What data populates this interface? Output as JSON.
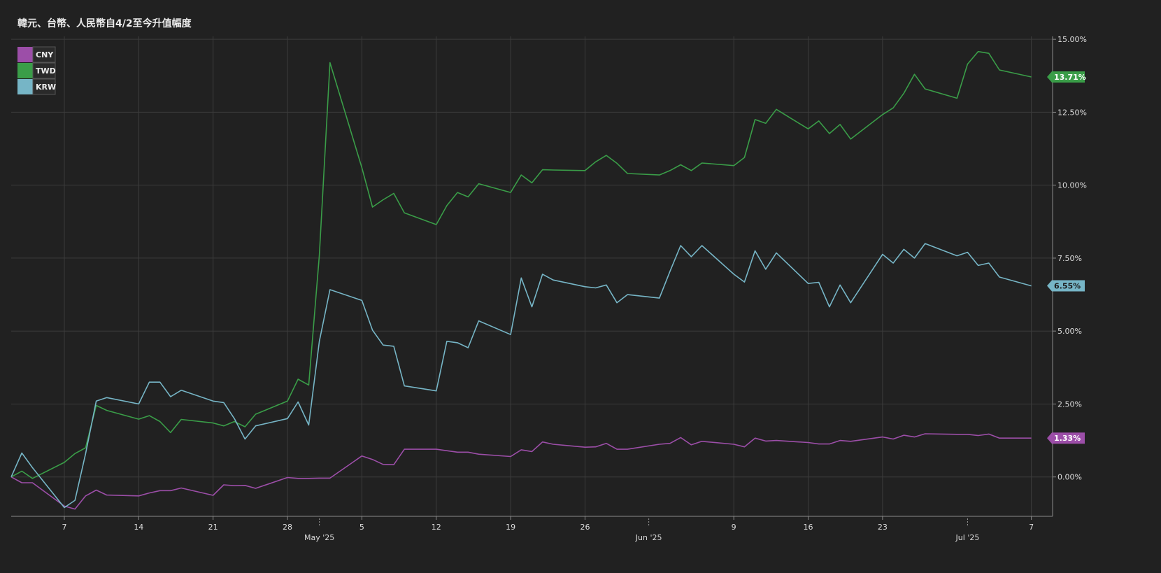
{
  "chart_data": {
    "type": "line",
    "title": "韓元、台幣、人民幣自4/2至今升值幅度",
    "ylim": [
      -1.35,
      15.1
    ],
    "yticks": [
      {
        "value": 15,
        "label": "15.00%"
      },
      {
        "value": 12.5,
        "label": "12.50%"
      },
      {
        "value": 10,
        "label": "10.00%"
      },
      {
        "value": 7.5,
        "label": "7.50%"
      },
      {
        "value": 5,
        "label": "5.00%"
      },
      {
        "value": 2.5,
        "label": "2.50%"
      },
      {
        "value": 0,
        "label": "0.00%"
      }
    ],
    "xrange": [
      "2025-04-02",
      "2025-07-09"
    ],
    "xticks": [
      {
        "date": "2025-04-07",
        "label": "7"
      },
      {
        "date": "2025-04-14",
        "label": "14"
      },
      {
        "date": "2025-04-21",
        "label": "21"
      },
      {
        "date": "2025-04-28",
        "label": "28"
      },
      {
        "date": "2025-05-05",
        "label": "5"
      },
      {
        "date": "2025-05-12",
        "label": "12"
      },
      {
        "date": "2025-05-19",
        "label": "19"
      },
      {
        "date": "2025-05-26",
        "label": "26"
      },
      {
        "date": "2025-06-09",
        "label": "9"
      },
      {
        "date": "2025-06-16",
        "label": "16"
      },
      {
        "date": "2025-06-23",
        "label": "23"
      },
      {
        "date": "2025-07-07",
        "label": "7"
      }
    ],
    "month_ticks": [
      {
        "date": "2025-05-01",
        "label": "May '25"
      },
      {
        "date": "2025-06-01",
        "label": "Jun '25"
      },
      {
        "date": "2025-07-01",
        "label": "Jul '25"
      }
    ],
    "legend_position": "top-left",
    "grid": true,
    "series": [
      {
        "name": "CNY",
        "color": "#9c4ea8",
        "last_label": "1.33%",
        "points": [
          [
            "2025-04-02",
            0.0
          ],
          [
            "2025-04-03",
            -0.2
          ],
          [
            "2025-04-04",
            -0.2
          ],
          [
            "2025-04-07",
            -1.0
          ],
          [
            "2025-04-08",
            -1.1
          ],
          [
            "2025-04-09",
            -0.65
          ],
          [
            "2025-04-10",
            -0.45
          ],
          [
            "2025-04-11",
            -0.62
          ],
          [
            "2025-04-14",
            -0.65
          ],
          [
            "2025-04-15",
            -0.55
          ],
          [
            "2025-04-16",
            -0.47
          ],
          [
            "2025-04-17",
            -0.47
          ],
          [
            "2025-04-18",
            -0.38
          ],
          [
            "2025-04-21",
            -0.63
          ],
          [
            "2025-04-22",
            -0.27
          ],
          [
            "2025-04-23",
            -0.3
          ],
          [
            "2025-04-24",
            -0.29
          ],
          [
            "2025-04-25",
            -0.39
          ],
          [
            "2025-04-28",
            -0.02
          ],
          [
            "2025-04-29",
            -0.05
          ],
          [
            "2025-04-30",
            -0.05
          ],
          [
            "2025-05-01",
            -0.04
          ],
          [
            "2025-05-02",
            -0.04
          ],
          [
            "2025-05-05",
            0.72
          ],
          [
            "2025-05-06",
            0.6
          ],
          [
            "2025-05-07",
            0.43
          ],
          [
            "2025-05-08",
            0.42
          ],
          [
            "2025-05-09",
            0.95
          ],
          [
            "2025-05-12",
            0.95
          ],
          [
            "2025-05-13",
            0.9
          ],
          [
            "2025-05-14",
            0.85
          ],
          [
            "2025-05-15",
            0.85
          ],
          [
            "2025-05-16",
            0.78
          ],
          [
            "2025-05-19",
            0.7
          ],
          [
            "2025-05-20",
            0.93
          ],
          [
            "2025-05-21",
            0.87
          ],
          [
            "2025-05-22",
            1.2
          ],
          [
            "2025-05-23",
            1.12
          ],
          [
            "2025-05-26",
            1.02
          ],
          [
            "2025-05-27",
            1.03
          ],
          [
            "2025-05-28",
            1.15
          ],
          [
            "2025-05-29",
            0.95
          ],
          [
            "2025-05-30",
            0.95
          ],
          [
            "2025-06-02",
            1.12
          ],
          [
            "2025-06-03",
            1.15
          ],
          [
            "2025-06-04",
            1.35
          ],
          [
            "2025-06-05",
            1.1
          ],
          [
            "2025-06-06",
            1.22
          ],
          [
            "2025-06-09",
            1.12
          ],
          [
            "2025-06-10",
            1.03
          ],
          [
            "2025-06-11",
            1.33
          ],
          [
            "2025-06-12",
            1.23
          ],
          [
            "2025-06-13",
            1.25
          ],
          [
            "2025-06-16",
            1.18
          ],
          [
            "2025-06-17",
            1.13
          ],
          [
            "2025-06-18",
            1.13
          ],
          [
            "2025-06-19",
            1.25
          ],
          [
            "2025-06-20",
            1.22
          ],
          [
            "2025-06-23",
            1.37
          ],
          [
            "2025-06-24",
            1.3
          ],
          [
            "2025-06-25",
            1.43
          ],
          [
            "2025-06-26",
            1.37
          ],
          [
            "2025-06-27",
            1.48
          ],
          [
            "2025-06-30",
            1.46
          ],
          [
            "2025-07-01",
            1.46
          ],
          [
            "2025-07-02",
            1.42
          ],
          [
            "2025-07-03",
            1.47
          ],
          [
            "2025-07-04",
            1.33
          ],
          [
            "2025-07-07",
            1.33
          ]
        ]
      },
      {
        "name": "TWD",
        "color": "#3a9d48",
        "last_label": "13.71%",
        "points": [
          [
            "2025-04-02",
            0.0
          ],
          [
            "2025-04-03",
            0.2
          ],
          [
            "2025-04-04",
            -0.05
          ],
          [
            "2025-04-07",
            0.5
          ],
          [
            "2025-04-08",
            0.8
          ],
          [
            "2025-04-09",
            1.0
          ],
          [
            "2025-04-10",
            2.45
          ],
          [
            "2025-04-11",
            2.28
          ],
          [
            "2025-04-14",
            1.98
          ],
          [
            "2025-04-15",
            2.1
          ],
          [
            "2025-04-16",
            1.9
          ],
          [
            "2025-04-17",
            1.52
          ],
          [
            "2025-04-18",
            1.97
          ],
          [
            "2025-04-21",
            1.85
          ],
          [
            "2025-04-22",
            1.75
          ],
          [
            "2025-04-23",
            1.9
          ],
          [
            "2025-04-24",
            1.72
          ],
          [
            "2025-04-25",
            2.15
          ],
          [
            "2025-04-28",
            2.6
          ],
          [
            "2025-04-29",
            3.35
          ],
          [
            "2025-04-30",
            3.15
          ],
          [
            "2025-05-01",
            7.6
          ],
          [
            "2025-05-02",
            14.2
          ],
          [
            "2025-05-05",
            10.6
          ],
          [
            "2025-05-06",
            9.25
          ],
          [
            "2025-05-07",
            9.5
          ],
          [
            "2025-05-08",
            9.72
          ],
          [
            "2025-05-09",
            9.05
          ],
          [
            "2025-05-12",
            8.65
          ],
          [
            "2025-05-13",
            9.3
          ],
          [
            "2025-05-14",
            9.75
          ],
          [
            "2025-05-15",
            9.6
          ],
          [
            "2025-05-16",
            10.05
          ],
          [
            "2025-05-19",
            9.75
          ],
          [
            "2025-05-20",
            10.35
          ],
          [
            "2025-05-21",
            10.08
          ],
          [
            "2025-05-22",
            10.53
          ],
          [
            "2025-05-23",
            10.52
          ],
          [
            "2025-05-26",
            10.5
          ],
          [
            "2025-05-27",
            10.8
          ],
          [
            "2025-05-28",
            11.02
          ],
          [
            "2025-05-29",
            10.75
          ],
          [
            "2025-05-30",
            10.4
          ],
          [
            "2025-06-02",
            10.35
          ],
          [
            "2025-06-03",
            10.5
          ],
          [
            "2025-06-04",
            10.7
          ],
          [
            "2025-06-05",
            10.5
          ],
          [
            "2025-06-06",
            10.76
          ],
          [
            "2025-06-09",
            10.67
          ],
          [
            "2025-06-10",
            10.95
          ],
          [
            "2025-06-11",
            12.25
          ],
          [
            "2025-06-12",
            12.12
          ],
          [
            "2025-06-13",
            12.6
          ],
          [
            "2025-06-16",
            11.93
          ],
          [
            "2025-06-17",
            12.2
          ],
          [
            "2025-06-18",
            11.77
          ],
          [
            "2025-06-19",
            12.08
          ],
          [
            "2025-06-20",
            11.58
          ],
          [
            "2025-06-23",
            12.42
          ],
          [
            "2025-06-24",
            12.65
          ],
          [
            "2025-06-25",
            13.15
          ],
          [
            "2025-06-26",
            13.8
          ],
          [
            "2025-06-27",
            13.3
          ],
          [
            "2025-06-30",
            12.98
          ],
          [
            "2025-07-01",
            14.15
          ],
          [
            "2025-07-02",
            14.58
          ],
          [
            "2025-07-03",
            14.52
          ],
          [
            "2025-07-04",
            13.95
          ],
          [
            "2025-07-07",
            13.71
          ]
        ]
      },
      {
        "name": "KRW",
        "color": "#76b5c6",
        "last_label": "6.55%",
        "points": [
          [
            "2025-04-02",
            0.0
          ],
          [
            "2025-04-03",
            0.82
          ],
          [
            "2025-04-04",
            0.32
          ],
          [
            "2025-04-07",
            -1.05
          ],
          [
            "2025-04-08",
            -0.8
          ],
          [
            "2025-04-09",
            0.8
          ],
          [
            "2025-04-10",
            2.6
          ],
          [
            "2025-04-11",
            2.72
          ],
          [
            "2025-04-14",
            2.5
          ],
          [
            "2025-04-15",
            3.25
          ],
          [
            "2025-04-16",
            3.25
          ],
          [
            "2025-04-17",
            2.75
          ],
          [
            "2025-04-18",
            2.97
          ],
          [
            "2025-04-21",
            2.6
          ],
          [
            "2025-04-22",
            2.55
          ],
          [
            "2025-04-23",
            2.0
          ],
          [
            "2025-04-24",
            1.3
          ],
          [
            "2025-04-25",
            1.75
          ],
          [
            "2025-04-28",
            2.0
          ],
          [
            "2025-04-29",
            2.57
          ],
          [
            "2025-04-30",
            1.78
          ],
          [
            "2025-05-01",
            4.65
          ],
          [
            "2025-05-02",
            6.42
          ],
          [
            "2025-05-05",
            6.05
          ],
          [
            "2025-05-06",
            5.03
          ],
          [
            "2025-05-07",
            4.52
          ],
          [
            "2025-05-08",
            4.48
          ],
          [
            "2025-05-09",
            3.12
          ],
          [
            "2025-05-12",
            2.95
          ],
          [
            "2025-05-13",
            4.65
          ],
          [
            "2025-05-14",
            4.6
          ],
          [
            "2025-05-15",
            4.43
          ],
          [
            "2025-05-16",
            5.35
          ],
          [
            "2025-05-19",
            4.88
          ],
          [
            "2025-05-20",
            6.82
          ],
          [
            "2025-05-21",
            5.83
          ],
          [
            "2025-05-22",
            6.95
          ],
          [
            "2025-05-23",
            6.75
          ],
          [
            "2025-05-26",
            6.52
          ],
          [
            "2025-05-27",
            6.48
          ],
          [
            "2025-05-28",
            6.58
          ],
          [
            "2025-05-29",
            5.97
          ],
          [
            "2025-05-30",
            6.25
          ],
          [
            "2025-06-02",
            6.13
          ],
          [
            "2025-06-03",
            7.05
          ],
          [
            "2025-06-04",
            7.93
          ],
          [
            "2025-06-05",
            7.55
          ],
          [
            "2025-06-06",
            7.93
          ],
          [
            "2025-06-09",
            6.95
          ],
          [
            "2025-06-10",
            6.68
          ],
          [
            "2025-06-11",
            7.75
          ],
          [
            "2025-06-12",
            7.12
          ],
          [
            "2025-06-13",
            7.68
          ],
          [
            "2025-06-16",
            6.63
          ],
          [
            "2025-06-17",
            6.67
          ],
          [
            "2025-06-18",
            5.83
          ],
          [
            "2025-06-19",
            6.58
          ],
          [
            "2025-06-20",
            5.97
          ],
          [
            "2025-06-23",
            7.63
          ],
          [
            "2025-06-24",
            7.33
          ],
          [
            "2025-06-25",
            7.8
          ],
          [
            "2025-06-26",
            7.5
          ],
          [
            "2025-06-27",
            8.0
          ],
          [
            "2025-06-30",
            7.58
          ],
          [
            "2025-07-01",
            7.7
          ],
          [
            "2025-07-02",
            7.25
          ],
          [
            "2025-07-03",
            7.33
          ],
          [
            "2025-07-04",
            6.85
          ],
          [
            "2025-07-07",
            6.55
          ]
        ]
      }
    ]
  }
}
